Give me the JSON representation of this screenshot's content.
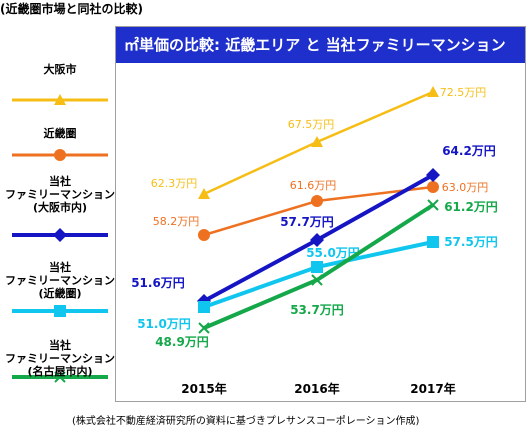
{
  "caption": "(近畿圏市場と同社の比較)",
  "source_note": "(株式会社不動産経済研究所の資料に基づきプレサンスコーポレーション作成)",
  "chart_data": {
    "type": "line",
    "title": "㎡単価の比較: 近畿エリア と 当社ファミリーマンション",
    "categories": [
      "2015年",
      "2016年",
      "2017年"
    ],
    "ylim": [
      45,
      75
    ],
    "grid": false,
    "legend_position": "left",
    "series": [
      {
        "name": "大阪市",
        "color": "#f6be15",
        "marker": "triangle",
        "values": [
          62.3,
          67.5,
          72.5
        ],
        "labels": [
          "62.3万円",
          "67.5万円",
          "72.5万円"
        ]
      },
      {
        "name": "近畿圏",
        "color": "#ee7121",
        "marker": "circle",
        "values": [
          58.2,
          61.6,
          63.0
        ],
        "labels": [
          "58.2万円",
          "61.6万円",
          "63.0万円"
        ]
      },
      {
        "name": "当社\nファミリーマンション\n(大阪市内)",
        "color": "#1515c4",
        "marker": "diamond",
        "values": [
          51.6,
          57.7,
          64.2
        ],
        "labels": [
          "51.6万円",
          "57.7万円",
          "64.2万円"
        ]
      },
      {
        "name": "当社\nファミリーマンション\n(近畿圏)",
        "color": "#11c6ee",
        "marker": "square",
        "values": [
          51.0,
          55.0,
          57.5
        ],
        "labels": [
          "51.0万円",
          "55.0万円",
          "57.5万円"
        ]
      },
      {
        "name": "当社\nファミリーマンション\n(名古屋市内)",
        "color": "#15a84a",
        "marker": "x",
        "values": [
          48.9,
          53.7,
          61.2
        ],
        "labels": [
          "48.9万円",
          "53.7万円",
          "61.2万円"
        ]
      }
    ]
  }
}
